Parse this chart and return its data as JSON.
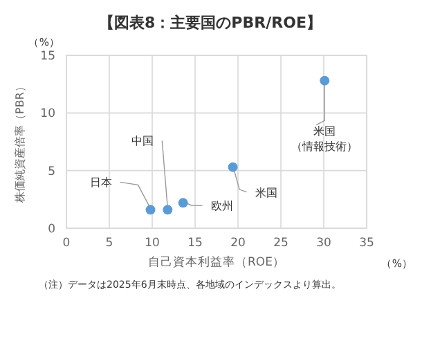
{
  "chart_data": {
    "type": "scatter",
    "title": "【図表8：主要国のPBR/ROE】",
    "xlabel": "自己資本利益率（ROE）",
    "ylabel": "株価純資産倍率（PBR）",
    "x": [
      9.8,
      11.8,
      13.6,
      19.4,
      30.1
    ],
    "values": [
      1.6,
      1.6,
      2.2,
      5.3,
      12.8
    ],
    "color": "#5b9bd5",
    "marker": "circle",
    "xlim": [
      0,
      35
    ],
    "xticks": [
      0,
      5,
      10,
      15,
      20,
      25,
      30,
      35
    ],
    "ylim": [
      0,
      15
    ],
    "yticks": [
      0,
      5,
      10,
      15
    ],
    "grid": true,
    "annotations": [
      {
        "text": "日本",
        "x": 9.8,
        "y": 1.6
      },
      {
        "text": "中国",
        "x": 11.8,
        "y": 1.6
      },
      {
        "text": "欧州",
        "x": 13.6,
        "y": 2.2
      },
      {
        "text": "米国",
        "x": 19.4,
        "y": 5.3
      },
      {
        "text": "米国（情報技術）",
        "x": 30.1,
        "y": 12.8
      },
      "（%）",
      "（%）",
      "（注）データは2025年6月末時点、各地域のインデックスより算出。"
    ]
  }
}
